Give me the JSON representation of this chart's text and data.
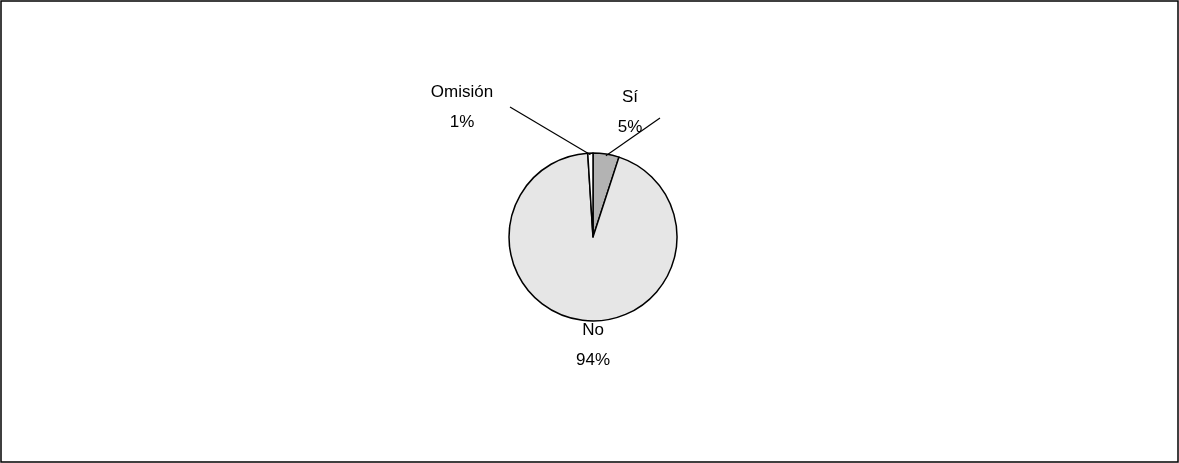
{
  "chart_data": {
    "type": "pie",
    "categories": [
      "Sí",
      "No",
      "Omisión"
    ],
    "values": [
      5,
      94,
      1
    ],
    "colors": [
      "#b3b3b3",
      "#e6e6e6",
      "#ffffff"
    ],
    "value_labels": [
      "5%",
      "94%",
      "1%"
    ]
  }
}
